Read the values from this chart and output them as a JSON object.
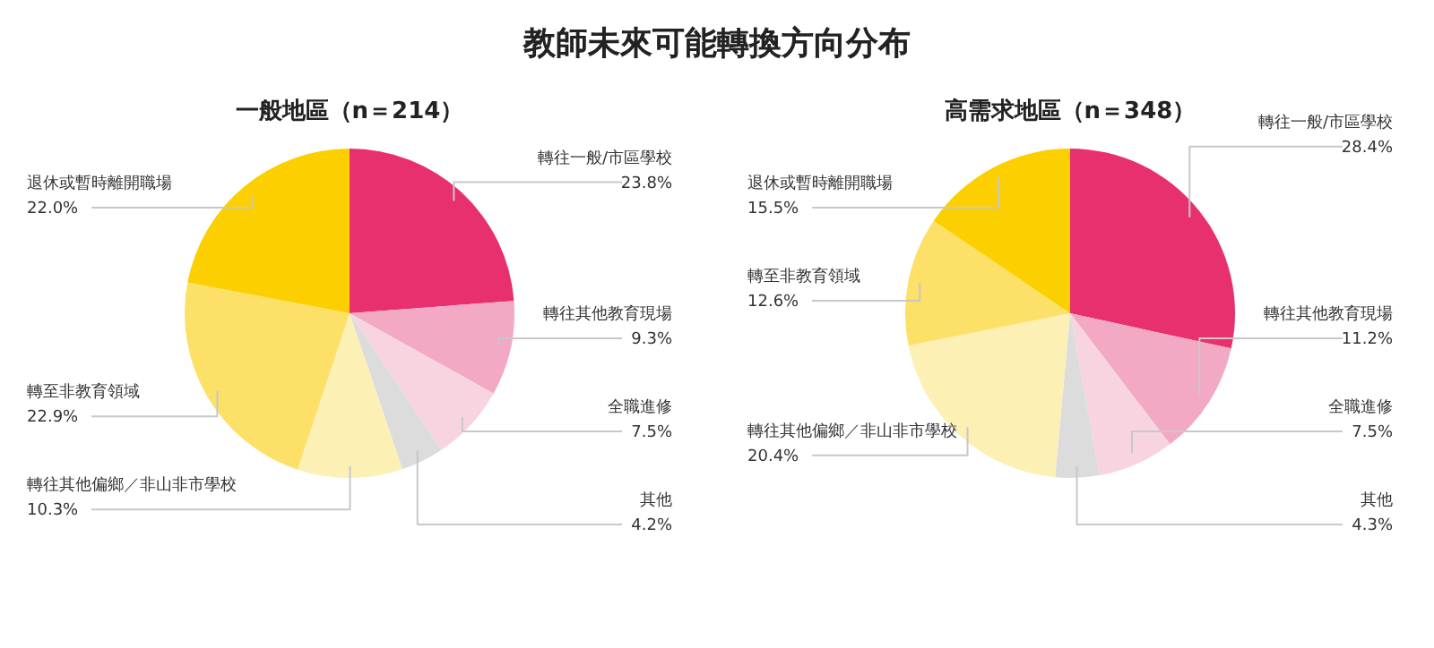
{
  "chart_data": [
    {
      "type": "pie",
      "title": "教師未來可能轉換方向分布",
      "subtitle": "一般地區（n＝214）",
      "categories": [
        "轉往一般/市區學校",
        "轉往其他教育現場",
        "全職進修",
        "其他",
        "轉往其他偏鄉／非山非市學校",
        "轉至非教育領域",
        "退休或暫時離開職場"
      ],
      "values": [
        23.8,
        9.3,
        7.5,
        4.2,
        10.3,
        22.9,
        22.0
      ],
      "value_labels": [
        "23.8%",
        "9.3%",
        "7.5%",
        "4.2%",
        "10.3%",
        "22.9%",
        "22.0%"
      ],
      "colors": [
        "#e8306e",
        "#f3a8c3",
        "#f8d4e1",
        "#dcdcdc",
        "#fdf0b5",
        "#fde067",
        "#fcd000"
      ]
    },
    {
      "type": "pie",
      "subtitle": "高需求地區（n＝348）",
      "categories": [
        "轉往一般/市區學校",
        "轉往其他教育現場",
        "全職進修",
        "其他",
        "轉往其他偏鄉／非山非市學校",
        "轉至非教育領域",
        "退休或暫時離開職場"
      ],
      "values": [
        28.4,
        11.2,
        7.5,
        4.3,
        20.4,
        12.6,
        15.5
      ],
      "value_labels": [
        "28.4%",
        "11.2%",
        "7.5%",
        "4.3%",
        "20.4%",
        "12.6%",
        "15.5%"
      ],
      "colors": [
        "#e8306e",
        "#f3a8c3",
        "#f8d4e1",
        "#dcdcdc",
        "#fdf0b5",
        "#fde067",
        "#fcd000"
      ]
    }
  ]
}
